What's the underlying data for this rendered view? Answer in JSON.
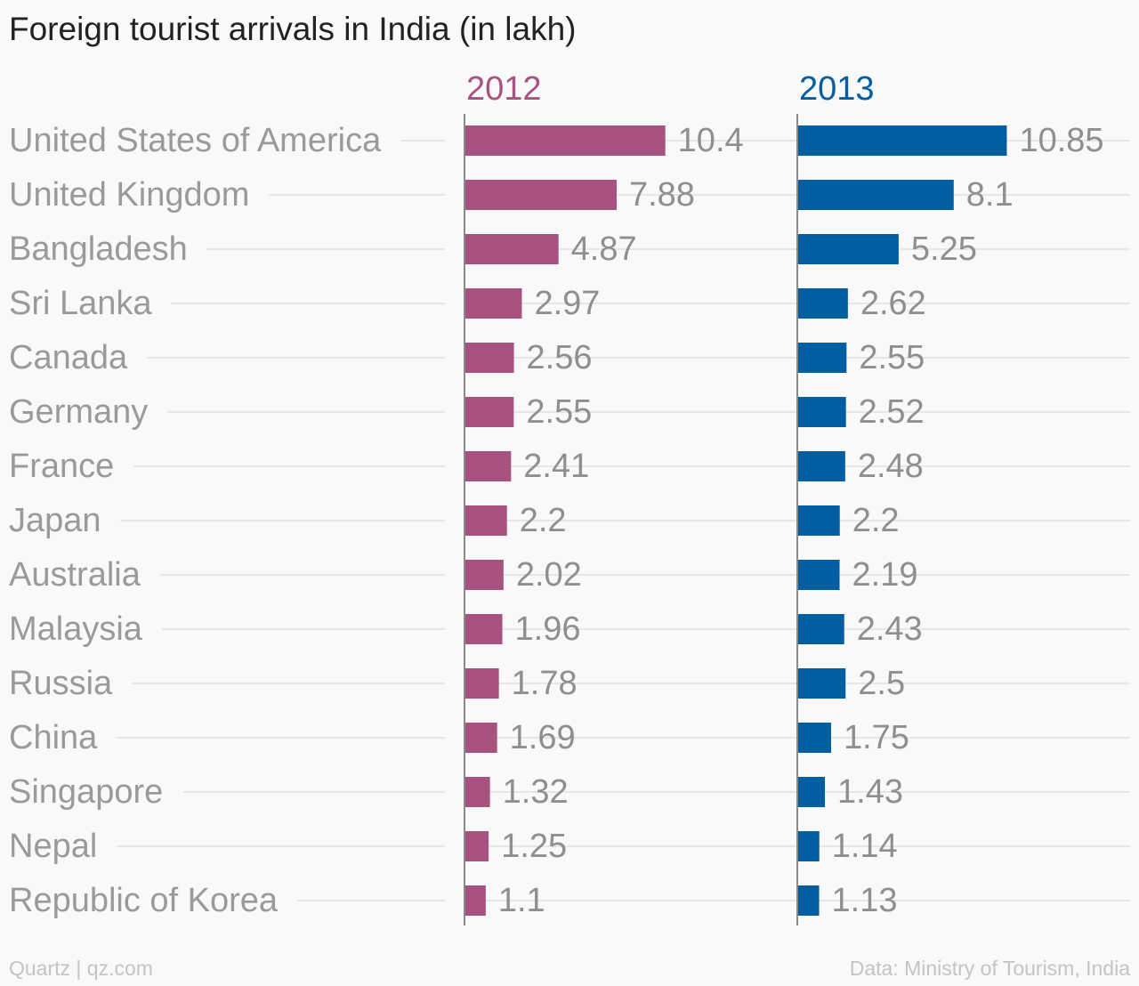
{
  "chart_data": {
    "type": "bar",
    "title": "Foreign tourist arrivals in India (in lakh)",
    "categories": [
      "United States of America",
      "United Kingdom",
      "Bangladesh",
      "Sri Lanka",
      "Canada",
      "Germany",
      "France",
      "Japan",
      "Australia",
      "Malaysia",
      "Russia",
      "China",
      "Singapore",
      "Nepal",
      "Republic of Korea"
    ],
    "series": [
      {
        "name": "2012",
        "color": "#a8527f",
        "values": [
          10.4,
          7.88,
          4.87,
          2.97,
          2.56,
          2.55,
          2.41,
          2.2,
          2.02,
          1.96,
          1.78,
          1.69,
          1.32,
          1.25,
          1.1
        ],
        "value_labels": [
          "10.4",
          "7.88",
          "4.87",
          "2.97",
          "2.56",
          "2.55",
          "2.41",
          "2.2",
          "2.02",
          "1.96",
          "1.78",
          "1.69",
          "1.32",
          "1.25",
          "1.1"
        ]
      },
      {
        "name": "2013",
        "color": "#005ea1",
        "values": [
          10.85,
          8.1,
          5.25,
          2.62,
          2.55,
          2.52,
          2.48,
          2.2,
          2.19,
          2.43,
          2.5,
          1.75,
          1.43,
          1.14,
          1.13
        ],
        "value_labels": [
          "10.85",
          "8.1",
          "5.25",
          "2.62",
          "2.55",
          "2.52",
          "2.48",
          "2.2",
          "2.19",
          "2.43",
          "2.5",
          "1.75",
          "1.43",
          "1.14",
          "1.13"
        ]
      }
    ],
    "orientation": "horizontal",
    "layout": "small-multiples",
    "grid": true,
    "xlim": [
      0,
      14
    ]
  },
  "footer": {
    "source_left": "Quartz | qz.com",
    "source_right": "Data: Ministry of Tourism, India"
  }
}
